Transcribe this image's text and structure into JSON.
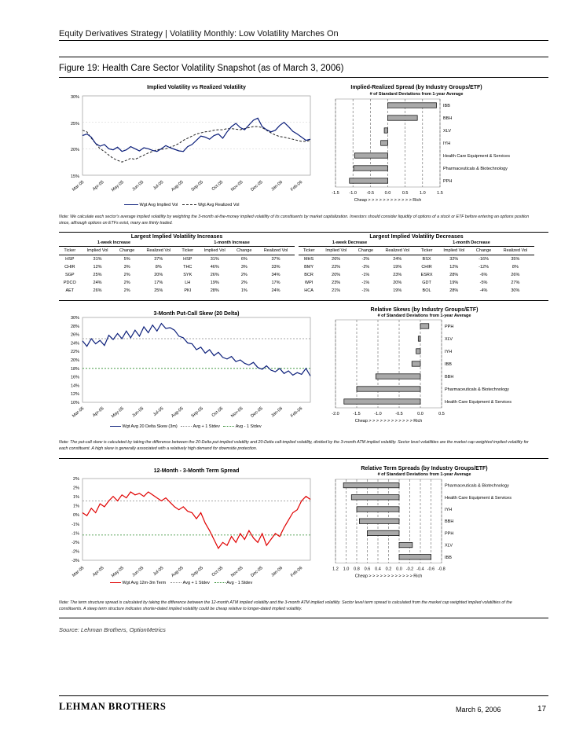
{
  "header": "Equity Derivatives Strategy | Volatility Monthly: Low Volatility Marches On",
  "figure_title": "Figure 19: Health Care Sector Volatility Snapshot (as of March 3, 2006)",
  "charts": {
    "implied_vs_realized": {
      "title": "Implied Volatility vs Realized Volatility",
      "y_ticks": [
        "30%",
        "25%",
        "20%",
        "15%"
      ],
      "x_ticks": [
        "Mar-05",
        "Apr-05",
        "May-05",
        "Jun-05",
        "Jul-05",
        "Aug-05",
        "Sep-05",
        "Oct-05",
        "Nov-05",
        "Dec-05",
        "Jan-06",
        "Feb-06"
      ],
      "legend": [
        "Wgt Avg Implied Vol",
        "Wgt Avg Realized Vol"
      ]
    },
    "implied_realized_spread": {
      "title": "Implied-Realized Spread (by Industry Groups/ETF)",
      "subtitle": "# of Standard Deviations from 1-year Average",
      "x_ticks": [
        "-1.5",
        "-1.0",
        "-0.5",
        "0.0",
        "0.5",
        "1.0",
        "1.5"
      ],
      "axis_caption": "Cheap > > > > > > > > > > > > Rich"
    },
    "put_call_skew": {
      "title": "3-Month Put-Call Skew (20 Delta)",
      "y_ticks": [
        "30%",
        "28%",
        "26%",
        "24%",
        "22%",
        "20%",
        "18%",
        "16%",
        "14%",
        "12%",
        "10%"
      ],
      "x_ticks": [
        "Mar-05",
        "Apr-05",
        "May-05",
        "Jun-05",
        "Jul-05",
        "Aug-05",
        "Sep-05",
        "Oct-05",
        "Nov-05",
        "Dec-05",
        "Jan-06",
        "Feb-06"
      ],
      "legend": [
        "Wgt Avg 20 Delta Skew (3m)",
        "Avg + 1 Stdev",
        "Avg - 1 Stdev"
      ]
    },
    "relative_skews": {
      "title": "Relative Skews (by Industry Groups/ETF)",
      "subtitle": "# of Standard Deviations from 1-year Average",
      "x_ticks": [
        "-2.0",
        "-1.5",
        "-1.0",
        "-0.5",
        "0.0",
        "0.5"
      ],
      "axis_caption": "Cheap > > > > > > > > > > > > Rich"
    },
    "term_structure": {
      "title": "12-Month - 3-Month Term Spread",
      "y_ticks": [
        "2%",
        "2%",
        "1%",
        "1%",
        "0%",
        "-1%",
        "-1%",
        "-2%",
        "-2%",
        "-3%"
      ],
      "x_ticks": [
        "Mar-05",
        "Apr-05",
        "May-05",
        "Jun-05",
        "Jul-05",
        "Aug-05",
        "Sep-05",
        "Oct-05",
        "Nov-05",
        "Dec-05",
        "Jan-06",
        "Feb-06"
      ],
      "legend": [
        "Wgt Avg 12m-3m Term",
        "Avg + 1 Stdev",
        "Avg - 1 Stdev"
      ]
    },
    "relative_term_spreads": {
      "title": "Relative Term Spreads (by Industry Groups/ETF)",
      "subtitle": "# of Standard Deviations from 1-year Average",
      "x_ticks": [
        "1.2",
        "1.0",
        "0.8",
        "0.6",
        "0.4",
        "0.2",
        "0.0",
        "-0.2",
        "-0.4",
        "-0.6",
        "-0.8"
      ],
      "axis_caption": "Cheap > > > > > > > > > > > > Rich"
    }
  },
  "chart_data": [
    {
      "type": "line",
      "title": "Implied Volatility vs Realized Volatility",
      "ylim": [
        15,
        30
      ],
      "y_unit": "%",
      "x_range": [
        "Mar-05",
        "Feb-06"
      ],
      "series": [
        {
          "name": "Wgt Avg Implied Vol",
          "style": "solid",
          "color": "#0b1e7a",
          "values": [
            22.5,
            22.8,
            22.2,
            21.0,
            20.5,
            20.8,
            20.0,
            19.8,
            20.3,
            19.5,
            19.8,
            20.4,
            20.0,
            19.6,
            20.2,
            20.0,
            19.7,
            19.5,
            20.0,
            20.6,
            20.2,
            19.9,
            19.6,
            19.5,
            20.4,
            20.8,
            21.6,
            22.4,
            22.2,
            21.8,
            22.5,
            22.8,
            22.0,
            23.2,
            24.2,
            24.8,
            24.0,
            23.6,
            24.5,
            25.4,
            25.8,
            24.2,
            23.6,
            23.2,
            23.5,
            24.4,
            25.0,
            24.2,
            23.3,
            22.8,
            22.2,
            21.6,
            21.8
          ]
        },
        {
          "name": "Wgt Avg Realized Vol",
          "style": "dashed",
          "color": "#222222",
          "values": [
            23.5,
            23.2,
            22.0,
            21.0,
            20.0,
            19.5,
            18.8,
            18.2,
            17.8,
            17.5,
            17.8,
            18.2,
            18.0,
            18.4,
            18.8,
            19.2,
            19.5,
            19.8,
            19.9,
            20.0,
            20.3,
            20.6,
            21.0,
            21.6,
            22.0,
            22.4,
            22.8,
            23.0,
            23.2,
            23.3,
            23.5,
            23.6,
            23.6,
            23.8,
            23.8,
            23.7,
            23.6,
            23.8,
            24.0,
            24.2,
            24.2,
            24.0,
            23.5,
            23.0,
            22.6,
            22.3,
            22.2,
            22.0,
            21.8,
            21.6,
            21.4,
            21.4,
            21.6
          ]
        }
      ]
    },
    {
      "type": "bar",
      "title": "Implied-Realized Spread (by Industry Groups/ETF)",
      "orientation": "horizontal",
      "xlim": [
        -1.5,
        1.5
      ],
      "categories": [
        "IBB",
        "BBH",
        "XLV",
        "IYH",
        "Health Care Equipment & Services",
        "Pharmaceuticals & Biotechnology",
        "PPH"
      ],
      "values": [
        1.4,
        0.85,
        -0.1,
        -0.2,
        -0.95,
        -0.98,
        -1.1
      ]
    },
    {
      "type": "line",
      "title": "3-Month Put-Call Skew (20 Delta)",
      "ylim": [
        10,
        30
      ],
      "y_unit": "%",
      "x_range": [
        "Mar-05",
        "Feb-06"
      ],
      "avg_plus_1sd": 25,
      "avg_minus_1sd": 18,
      "series": [
        {
          "name": "Wgt Avg 20 Delta Skew (3m)",
          "style": "solid",
          "color": "#0b1e7a",
          "values": [
            24.5,
            23.2,
            25.0,
            23.8,
            24.6,
            23.4,
            25.8,
            24.8,
            26.2,
            25.0,
            26.8,
            25.2,
            27.0,
            25.6,
            27.8,
            26.4,
            28.2,
            26.8,
            28.6,
            27.4,
            27.6,
            27.0,
            25.6,
            25.2,
            24.0,
            23.8,
            22.4,
            23.0,
            21.6,
            22.4,
            21.0,
            21.8,
            20.6,
            20.2,
            20.8,
            19.6,
            20.0,
            19.2,
            18.8,
            19.4,
            18.2,
            17.8,
            18.6,
            17.6,
            17.2,
            18.0,
            16.8,
            17.4,
            16.4,
            17.0,
            16.6,
            18.0,
            16.2
          ]
        },
        {
          "name": "Avg + 1 Stdev",
          "style": "dotted",
          "color": "#888888",
          "value": 25
        },
        {
          "name": "Avg - 1 Stdev",
          "style": "dotted",
          "color": "#2e8b2e",
          "value": 18
        }
      ]
    },
    {
      "type": "bar",
      "title": "Relative Skews (by Industry Groups/ETF)",
      "orientation": "horizontal",
      "xlim": [
        -2.0,
        0.5
      ],
      "categories": [
        "PPH",
        "XLV",
        "IYH",
        "IBB",
        "BBH",
        "Pharmaceuticals & Biotechnology",
        "Health Care Equipment & Services"
      ],
      "values": [
        0.2,
        -0.05,
        -0.1,
        -0.2,
        -1.05,
        -1.5,
        -1.8
      ]
    },
    {
      "type": "line",
      "title": "12-Month - 3-Month Term Spread",
      "y_unit": "%",
      "x_range": [
        "Mar-05",
        "Feb-06"
      ],
      "series": [
        {
          "name": "Wgt Avg 12m-3m Term",
          "style": "solid",
          "color": "#e00000",
          "values": [
            0.2,
            0.0,
            0.5,
            0.2,
            0.8,
            0.6,
            1.0,
            1.3,
            1.0,
            1.4,
            1.2,
            1.6,
            1.4,
            1.5,
            1.3,
            1.6,
            1.4,
            1.2,
            1.0,
            1.2,
            0.9,
            0.6,
            0.4,
            0.6,
            0.3,
            0.2,
            -0.2,
            0.2,
            -0.5,
            -1.0,
            -1.6,
            -2.2,
            -1.8,
            -2.0,
            -1.4,
            -1.8,
            -1.2,
            -1.6,
            -1.0,
            -1.5,
            -1.8,
            -1.2,
            -2.0,
            -1.6,
            -1.2,
            -1.4,
            -0.8,
            -0.3,
            0.2,
            0.4,
            1.0,
            1.3,
            1.1
          ]
        },
        {
          "name": "Avg + 1 Stdev",
          "style": "dotted",
          "color": "#888888"
        },
        {
          "name": "Avg - 1 Stdev",
          "style": "dotted",
          "color": "#2e8b2e"
        }
      ]
    },
    {
      "type": "bar",
      "title": "Relative Term Spreads (by Industry Groups/ETF)",
      "orientation": "horizontal",
      "xlim": [
        1.2,
        -0.8
      ],
      "categories": [
        "Pharmaceuticals & Biotechnology",
        "Health Care Equipment & Services",
        "IYH",
        "BBH",
        "PPH",
        "XLV",
        "IBB"
      ],
      "values": [
        1.05,
        0.9,
        0.8,
        0.75,
        0.6,
        -0.25,
        -0.6
      ]
    }
  ],
  "notes": {
    "note1": "Note: We calculate each sector's average implied volatility by weighting the 3-month at-the-money implied volatility of its constituents by market capitalization. Investors should consider liquidity of options of a stock or ETF before entering an options position since, although options on ETFs exist, many are thinly traded.",
    "note2": "Note: The put-call skew is calculated by taking the difference between the 20-Delta put-implied volatility and 20-Delta call-implied volatility, divided by the 3-month ATM implied volatility. Sector level volatilities are the market cap weighted implied volatility for each constituent. A high skew is generally associated with a relatively high demand for downside protection.",
    "note3": "Note: The term structure spread is calculated by taking the difference between the 12-month ATM implied volatility and the 3-month ATM implied volatility. Sector level term spread is calculated from the market cap weighted implied volatilities of the constituents. A steep term structure indicates shorter-dated implied volatility could be cheap relative to longer-dated implied volatility."
  },
  "tables": {
    "increases": {
      "title": "Largest Implied Volatility Increases",
      "group1": "1-week Increase",
      "group2": "1-month Increase",
      "headers": [
        "Ticker",
        "Implied Vol",
        "Change",
        "Realized Vol",
        "Ticker",
        "Implied Vol",
        "Change",
        "Realized Vol"
      ],
      "rows": [
        [
          "HSP",
          "31%",
          "5%",
          "37%",
          "HSP",
          "31%",
          "6%",
          "37%"
        ],
        [
          "CHIR",
          "12%",
          "3%",
          "8%",
          "THC",
          "46%",
          "3%",
          "33%"
        ],
        [
          "SGP",
          "25%",
          "2%",
          "20%",
          "SYK",
          "26%",
          "2%",
          "34%"
        ],
        [
          "PDCO",
          "24%",
          "2%",
          "17%",
          "LH",
          "19%",
          "2%",
          "17%"
        ],
        [
          "AET",
          "26%",
          "2%",
          "25%",
          "PKI",
          "28%",
          "1%",
          "24%"
        ]
      ]
    },
    "decreases": {
      "title": "Largest Implied Volatility Decreases",
      "group1": "1-week Decrease",
      "group2": "1-month Decrease",
      "headers": [
        "Ticker",
        "Implied Vol",
        "Change",
        "Realized Vol",
        "Ticker",
        "Implied Vol",
        "Change",
        "Realized Vol"
      ],
      "rows": [
        [
          "MHS",
          "26%",
          "-2%",
          "24%",
          "BSX",
          "32%",
          "-16%",
          "35%"
        ],
        [
          "BMY",
          "22%",
          "-2%",
          "19%",
          "CHIR",
          "12%",
          "-12%",
          "8%"
        ],
        [
          "BCR",
          "20%",
          "-1%",
          "23%",
          "ESRX",
          "28%",
          "-6%",
          "26%"
        ],
        [
          "WPI",
          "23%",
          "-1%",
          "20%",
          "GDT",
          "19%",
          "-5%",
          "27%"
        ],
        [
          "HCA",
          "21%",
          "-1%",
          "19%",
          "BOL",
          "28%",
          "-4%",
          "30%"
        ]
      ]
    }
  },
  "source": "Source: Lehman Brothers, OptionMetrics",
  "footer": {
    "logo": "LEHMAN BROTHERS",
    "date": "March 6, 2006",
    "page": "17"
  }
}
